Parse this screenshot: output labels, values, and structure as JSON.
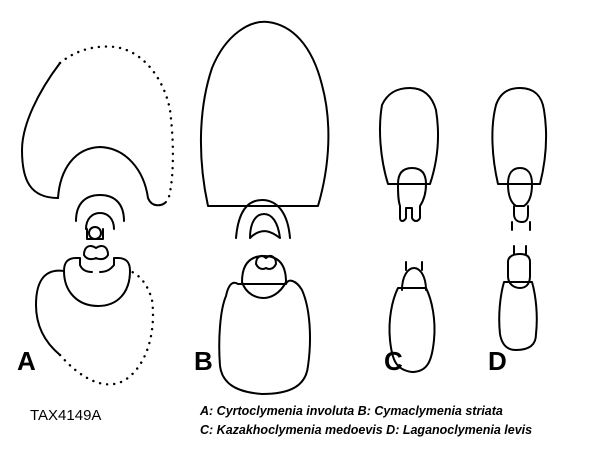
{
  "figure": {
    "specimen_code": "TAX4149A",
    "panel_labels": [
      "A",
      "B",
      "C",
      "D"
    ],
    "legend": {
      "line1": "A: Cyrtoclymenia involuta   B: Cymaclymenia striata",
      "line2": "C: Kazakhoclymenia medoevis   D: Laganoclymenia levis"
    }
  },
  "colors": {
    "ink": "#000000",
    "background": "#ffffff"
  }
}
